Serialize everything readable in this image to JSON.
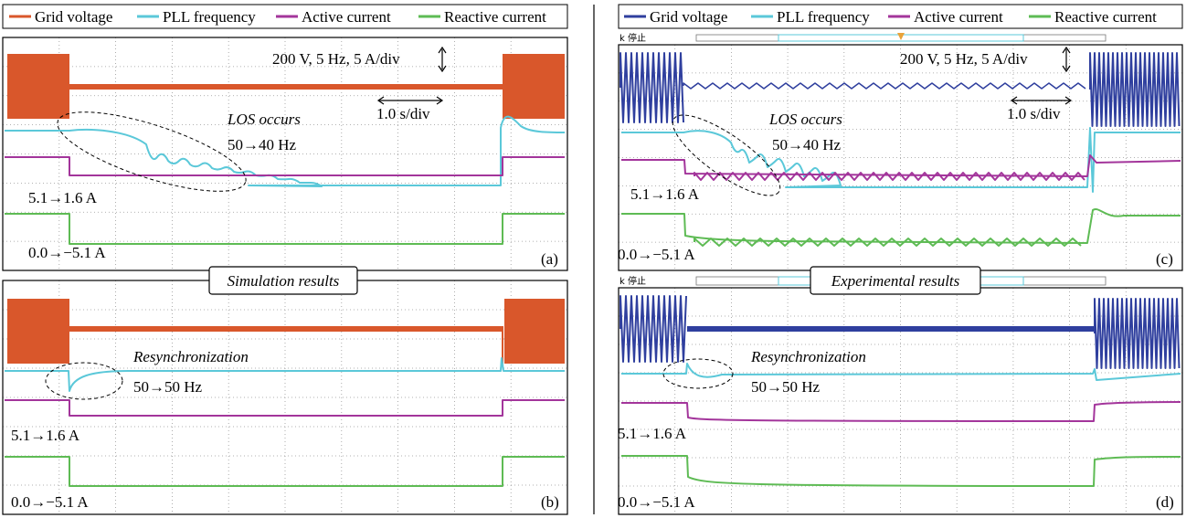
{
  "legend_left": {
    "items": [
      {
        "label": "Grid voltage",
        "color": "#D9572B"
      },
      {
        "label": "PLL frequency",
        "color": "#5BC8D9"
      },
      {
        "label": "Active current",
        "color": "#A3359B"
      },
      {
        "label": "Reactive current",
        "color": "#5EBB54"
      }
    ]
  },
  "legend_right": {
    "items": [
      {
        "label": "Grid voltage",
        "color": "#2F3F9E"
      },
      {
        "label": "PLL frequency",
        "color": "#5BC8D9"
      },
      {
        "label": "Active current",
        "color": "#A3359B"
      },
      {
        "label": "Reactive current",
        "color": "#5EBB54"
      }
    ]
  },
  "scope_status": "k 停止",
  "banners": {
    "simulation": "Simulation results",
    "experimental": "Experimental results"
  },
  "chart_data": [
    {
      "type": "line",
      "panel": "(a)",
      "annotations": {
        "scale": "200 V, 5 Hz, 5 A/div",
        "time": "1.0 s/div",
        "event": "LOS occurs",
        "freq": "50→40 Hz",
        "active": "5.1→1.6 A",
        "reactive": "0.0→−5.1 A"
      },
      "events_s": {
        "los_start": 0.7,
        "recovery": 5.7
      },
      "series": [
        {
          "name": "Grid voltage",
          "state": "on → off → on"
        },
        {
          "name": "PLL frequency",
          "values_hz": [
            50,
            40,
            50
          ]
        },
        {
          "name": "Active current",
          "values_a": [
            5.1,
            1.6,
            5.1
          ]
        },
        {
          "name": "Reactive current",
          "values_a": [
            0.0,
            -5.1,
            0.0
          ]
        }
      ]
    },
    {
      "type": "line",
      "panel": "(b)",
      "annotations": {
        "event": "Resynchronization",
        "freq": "50→50 Hz",
        "active": "5.1→1.6 A",
        "reactive": "0.0→−5.1 A"
      },
      "series": [
        {
          "name": "Grid voltage",
          "state": "on → off → on"
        },
        {
          "name": "PLL frequency",
          "values_hz": [
            50,
            50,
            50
          ]
        },
        {
          "name": "Active current",
          "values_a": [
            5.1,
            1.6,
            5.1
          ]
        },
        {
          "name": "Reactive current",
          "values_a": [
            0.0,
            -5.1,
            0.0
          ]
        }
      ]
    },
    {
      "type": "line",
      "panel": "(c)",
      "annotations": {
        "scale": "200 V, 5 Hz, 5 A/div",
        "time": "1.0 s/div",
        "event": "LOS occurs",
        "freq": "50→40 Hz",
        "active": "5.1→1.6 A",
        "reactive": "0.0→−5.1 A"
      },
      "series": [
        {
          "name": "Grid voltage",
          "state": "on → off → on"
        },
        {
          "name": "PLL frequency",
          "values_hz": [
            50,
            40,
            50
          ]
        },
        {
          "name": "Active current",
          "values_a": [
            5.1,
            1.6,
            5.1
          ]
        },
        {
          "name": "Reactive current",
          "values_a": [
            0.0,
            -5.1,
            0.0
          ]
        }
      ]
    },
    {
      "type": "line",
      "panel": "(d)",
      "annotations": {
        "event": "Resynchronization",
        "freq": "50→50 Hz",
        "active": "5.1→1.6 A",
        "reactive": "0.0→−5.1 A"
      },
      "series": [
        {
          "name": "Grid voltage",
          "state": "on → off → on"
        },
        {
          "name": "PLL frequency",
          "values_hz": [
            50,
            50,
            50
          ]
        },
        {
          "name": "Active current",
          "values_a": [
            5.1,
            1.6,
            5.1
          ]
        },
        {
          "name": "Reactive current",
          "values_a": [
            0.0,
            -5.1,
            0.0
          ]
        }
      ]
    }
  ]
}
